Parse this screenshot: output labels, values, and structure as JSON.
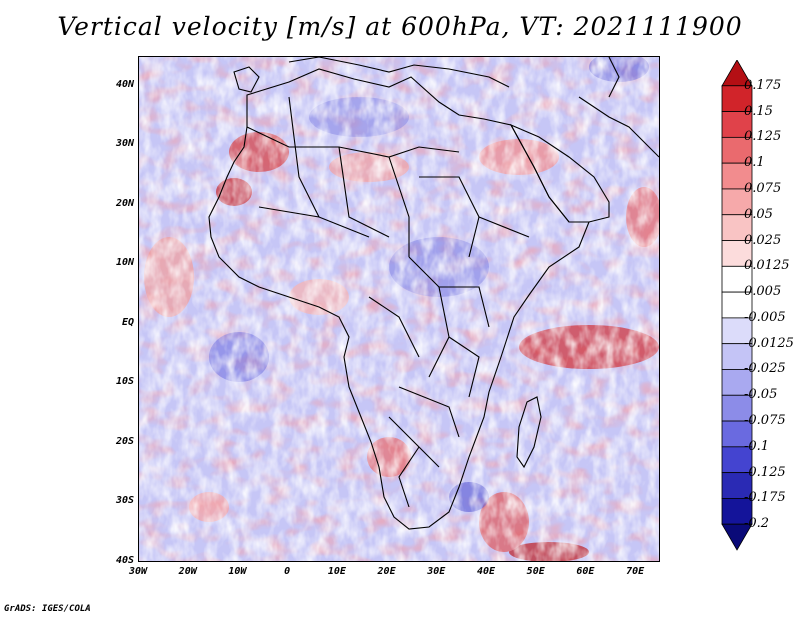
{
  "title": "Vertical velocity [m/s] at 600hPa, VT: 2021111900",
  "credit": "GrADS: IGES/COLA",
  "map": {
    "lat_labels": [
      "40N",
      "30N",
      "20N",
      "10N",
      "EQ",
      "10S",
      "20S",
      "30S",
      "40S"
    ],
    "lat_values": [
      40,
      30,
      20,
      10,
      0,
      -10,
      -20,
      -30,
      -40
    ],
    "lon_labels": [
      "30W",
      "20W",
      "10W",
      "0",
      "10E",
      "20E",
      "30E",
      "40E",
      "50E",
      "60E",
      "70E"
    ],
    "lon_values": [
      -30,
      -20,
      -10,
      0,
      10,
      20,
      30,
      40,
      50,
      60,
      70
    ],
    "lon_range": [
      -30,
      75
    ],
    "lat_range": [
      -40,
      45
    ]
  },
  "colorbar": {
    "labels": [
      "0.175",
      "0.15",
      "0.125",
      "0.1",
      "0.075",
      "0.05",
      "0.025",
      "0.0125",
      "0.005",
      "-0.005",
      "-0.0125",
      "-0.025",
      "-0.05",
      "-0.075",
      "-0.1",
      "-0.125",
      "-0.175",
      "-0.2"
    ],
    "colors": [
      "#b40f14",
      "#d1242a",
      "#e0424a",
      "#ea6a6e",
      "#f28c8e",
      "#f6a9aa",
      "#f9c4c4",
      "#fcdcdc",
      "#ffffff",
      "#ffffff",
      "#dcdcfa",
      "#c4c4f6",
      "#a9a9f0",
      "#8c8ce8",
      "#6a6ae0",
      "#4444d0",
      "#2a2ab4",
      "#14149a",
      "#0a0a78"
    ]
  }
}
